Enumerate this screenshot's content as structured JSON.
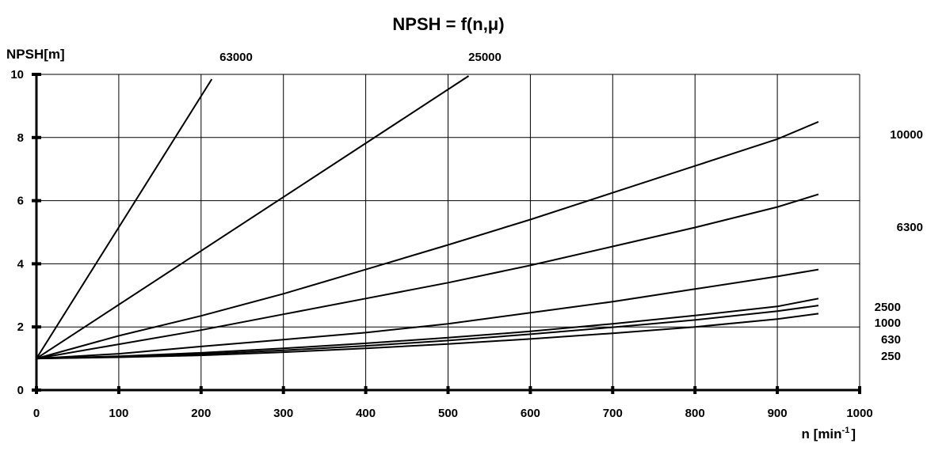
{
  "chart_data": {
    "type": "line",
    "title": "NPSH = f(n,μ)",
    "ylabel": "NPSH[m]",
    "xlabel": "n [min",
    "xlabel_sup": "-1",
    "xlabel_tail": "]",
    "xlim": [
      0,
      1000
    ],
    "ylim": [
      0,
      10
    ],
    "x_ticks": [
      0,
      100,
      200,
      300,
      400,
      500,
      600,
      700,
      800,
      900,
      1000
    ],
    "y_ticks": [
      0,
      2,
      4,
      6,
      8,
      10
    ],
    "grid": true,
    "series": [
      {
        "name": "63000",
        "points": [
          [
            0,
            1.0
          ],
          [
            213,
            9.85
          ]
        ]
      },
      {
        "name": "25000",
        "points": [
          [
            0,
            1.0
          ],
          [
            525,
            9.95
          ]
        ]
      },
      {
        "name": "10000",
        "points": [
          [
            0,
            1.0
          ],
          [
            100,
            1.72
          ],
          [
            200,
            2.35
          ],
          [
            300,
            3.05
          ],
          [
            400,
            3.82
          ],
          [
            500,
            4.6
          ],
          [
            600,
            5.4
          ],
          [
            700,
            6.25
          ],
          [
            800,
            7.1
          ],
          [
            900,
            7.95
          ],
          [
            950,
            8.5
          ]
        ]
      },
      {
        "name": "6300",
        "points": [
          [
            0,
            1.0
          ],
          [
            100,
            1.45
          ],
          [
            200,
            1.9
          ],
          [
            300,
            2.4
          ],
          [
            400,
            2.9
          ],
          [
            500,
            3.4
          ],
          [
            600,
            3.95
          ],
          [
            700,
            4.55
          ],
          [
            800,
            5.15
          ],
          [
            900,
            5.8
          ],
          [
            950,
            6.2
          ]
        ]
      },
      {
        "name": "2500",
        "points": [
          [
            0,
            1.0
          ],
          [
            100,
            1.15
          ],
          [
            200,
            1.38
          ],
          [
            300,
            1.6
          ],
          [
            400,
            1.82
          ],
          [
            500,
            2.1
          ],
          [
            600,
            2.45
          ],
          [
            700,
            2.8
          ],
          [
            800,
            3.2
          ],
          [
            900,
            3.6
          ],
          [
            950,
            3.82
          ]
        ]
      },
      {
        "name": "1000",
        "points": [
          [
            0,
            1.0
          ],
          [
            100,
            1.07
          ],
          [
            200,
            1.18
          ],
          [
            300,
            1.32
          ],
          [
            400,
            1.48
          ],
          [
            500,
            1.66
          ],
          [
            600,
            1.86
          ],
          [
            700,
            2.1
          ],
          [
            800,
            2.36
          ],
          [
            900,
            2.65
          ],
          [
            950,
            2.9
          ]
        ]
      },
      {
        "name": "630",
        "points": [
          [
            0,
            1.0
          ],
          [
            100,
            1.05
          ],
          [
            200,
            1.14
          ],
          [
            300,
            1.26
          ],
          [
            400,
            1.4
          ],
          [
            500,
            1.57
          ],
          [
            600,
            1.77
          ],
          [
            700,
            1.99
          ],
          [
            800,
            2.22
          ],
          [
            900,
            2.5
          ],
          [
            950,
            2.68
          ]
        ]
      },
      {
        "name": "250",
        "points": [
          [
            0,
            1.0
          ],
          [
            100,
            1.04
          ],
          [
            200,
            1.1
          ],
          [
            300,
            1.2
          ],
          [
            400,
            1.32
          ],
          [
            500,
            1.46
          ],
          [
            600,
            1.62
          ],
          [
            700,
            1.8
          ],
          [
            800,
            2.0
          ],
          [
            900,
            2.25
          ],
          [
            950,
            2.42
          ]
        ]
      }
    ]
  }
}
